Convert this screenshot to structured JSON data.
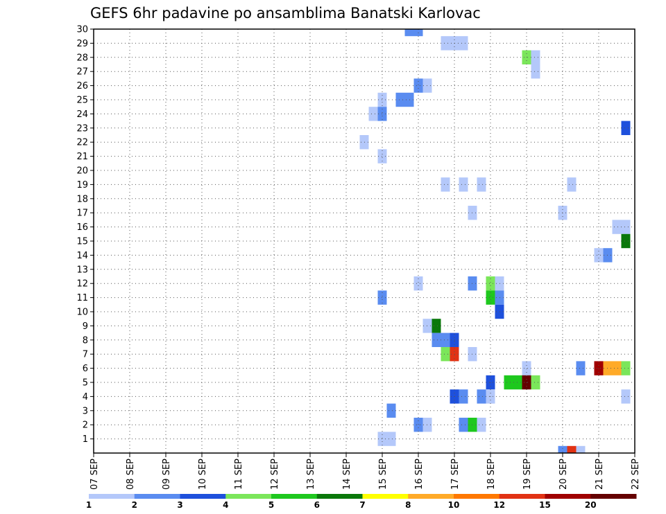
{
  "chart_data": {
    "type": "heatmap",
    "title": "GEFS 6hr padavine po ansamblima Banatski Karlovac",
    "xlabel": "",
    "ylabel": "",
    "x_ticks": [
      "07 SEP",
      "08 SEP",
      "09 SEP",
      "10 SEP",
      "11 SEP",
      "12 SEP",
      "13 SEP",
      "14 SEP",
      "15 SEP",
      "16 SEP",
      "17 SEP",
      "18 SEP",
      "19 SEP",
      "20 SEP",
      "21 SEP",
      "22 SEP"
    ],
    "x_range_days": [
      0,
      15
    ],
    "y_ticks": [
      1,
      2,
      3,
      4,
      5,
      6,
      7,
      8,
      9,
      10,
      11,
      12,
      13,
      14,
      15,
      16,
      17,
      18,
      19,
      20,
      21,
      22,
      23,
      24,
      25,
      26,
      27,
      28,
      29,
      30
    ],
    "y_range": [
      0,
      30
    ],
    "grid": true,
    "step_days": 0.25,
    "legend": {
      "position": "bottom",
      "labels": [
        "1",
        "2",
        "3",
        "4",
        "5",
        "6",
        "7",
        "8",
        "10",
        "12",
        "15",
        "20"
      ],
      "colors": [
        "#b4c8fa",
        "#5a8cf0",
        "#1e50dc",
        "#7be65a",
        "#1ec81e",
        "#0a780a",
        "#ffff00",
        "#ffaa28",
        "#ff7800",
        "#e13214",
        "#a00000",
        "#640000"
      ]
    },
    "cells": [
      {
        "member": 30,
        "t": 8.75,
        "level": 2
      },
      {
        "member": 30,
        "t": 9.0,
        "level": 2
      },
      {
        "member": 29,
        "t": 9.75,
        "level": 1
      },
      {
        "member": 29,
        "t": 10.0,
        "level": 1
      },
      {
        "member": 29,
        "t": 10.25,
        "level": 1
      },
      {
        "member": 28,
        "t": 12.0,
        "level": 4
      },
      {
        "member": 28,
        "t": 12.25,
        "level": 1
      },
      {
        "member": 27,
        "t": 12.25,
        "level": 1
      },
      {
        "member": 26,
        "t": 9.0,
        "level": 2
      },
      {
        "member": 26,
        "t": 9.25,
        "level": 1
      },
      {
        "member": 25,
        "t": 8.0,
        "level": 1
      },
      {
        "member": 25,
        "t": 8.5,
        "level": 2
      },
      {
        "member": 25,
        "t": 8.75,
        "level": 2
      },
      {
        "member": 24,
        "t": 7.75,
        "level": 1
      },
      {
        "member": 24,
        "t": 8.0,
        "level": 2
      },
      {
        "member": 23,
        "t": 14.75,
        "level": 3
      },
      {
        "member": 22,
        "t": 7.5,
        "level": 1
      },
      {
        "member": 21,
        "t": 8.0,
        "level": 1
      },
      {
        "member": 19,
        "t": 9.75,
        "level": 1
      },
      {
        "member": 19,
        "t": 10.25,
        "level": 1
      },
      {
        "member": 19,
        "t": 10.75,
        "level": 1
      },
      {
        "member": 19,
        "t": 13.25,
        "level": 1
      },
      {
        "member": 17,
        "t": 10.5,
        "level": 1
      },
      {
        "member": 17,
        "t": 13.0,
        "level": 1
      },
      {
        "member": 16,
        "t": 14.5,
        "level": 1
      },
      {
        "member": 16,
        "t": 14.75,
        "level": 1
      },
      {
        "member": 15,
        "t": 14.75,
        "level": 6
      },
      {
        "member": 14,
        "t": 14.0,
        "level": 1
      },
      {
        "member": 14,
        "t": 14.25,
        "level": 2
      },
      {
        "member": 12,
        "t": 9.0,
        "level": 1
      },
      {
        "member": 12,
        "t": 10.5,
        "level": 2
      },
      {
        "member": 12,
        "t": 11.0,
        "level": 4
      },
      {
        "member": 12,
        "t": 11.25,
        "level": 1
      },
      {
        "member": 11,
        "t": 8.0,
        "level": 2
      },
      {
        "member": 11,
        "t": 11.0,
        "level": 5
      },
      {
        "member": 11,
        "t": 11.25,
        "level": 2
      },
      {
        "member": 10,
        "t": 11.25,
        "level": 3
      },
      {
        "member": 9,
        "t": 9.25,
        "level": 1
      },
      {
        "member": 9,
        "t": 9.5,
        "level": 6
      },
      {
        "member": 8,
        "t": 9.5,
        "level": 2
      },
      {
        "member": 8,
        "t": 9.75,
        "level": 2
      },
      {
        "member": 8,
        "t": 10.0,
        "level": 3
      },
      {
        "member": 7,
        "t": 9.75,
        "level": 4
      },
      {
        "member": 7,
        "t": 10.0,
        "level": 10
      },
      {
        "member": 7,
        "t": 10.5,
        "level": 1
      },
      {
        "member": 6,
        "t": 12.0,
        "level": 1
      },
      {
        "member": 6,
        "t": 13.5,
        "level": 2
      },
      {
        "member": 6,
        "t": 14.0,
        "level": 11
      },
      {
        "member": 6,
        "t": 14.25,
        "level": 8
      },
      {
        "member": 6,
        "t": 14.5,
        "level": 8
      },
      {
        "member": 6,
        "t": 14.75,
        "level": 4
      },
      {
        "member": 5,
        "t": 11.0,
        "level": 3
      },
      {
        "member": 5,
        "t": 11.5,
        "level": 5
      },
      {
        "member": 5,
        "t": 11.75,
        "level": 5
      },
      {
        "member": 5,
        "t": 12.0,
        "level": 12
      },
      {
        "member": 5,
        "t": 12.25,
        "level": 4
      },
      {
        "member": 4,
        "t": 10.0,
        "level": 3
      },
      {
        "member": 4,
        "t": 10.25,
        "level": 2
      },
      {
        "member": 4,
        "t": 10.75,
        "level": 2
      },
      {
        "member": 4,
        "t": 11.0,
        "level": 1
      },
      {
        "member": 4,
        "t": 14.75,
        "level": 1
      },
      {
        "member": 3,
        "t": 8.25,
        "level": 2
      },
      {
        "member": 2,
        "t": 9.0,
        "level": 2
      },
      {
        "member": 2,
        "t": 9.25,
        "level": 1
      },
      {
        "member": 2,
        "t": 10.25,
        "level": 2
      },
      {
        "member": 2,
        "t": 10.5,
        "level": 5
      },
      {
        "member": 2,
        "t": 10.75,
        "level": 1
      },
      {
        "member": 1,
        "t": 8.0,
        "level": 1
      },
      {
        "member": 1,
        "t": 8.25,
        "level": 1
      },
      {
        "member": 0,
        "t": 13.0,
        "level": 2
      },
      {
        "member": 0,
        "t": 13.25,
        "level": 10
      },
      {
        "member": 0,
        "t": 13.5,
        "level": 1
      }
    ]
  }
}
